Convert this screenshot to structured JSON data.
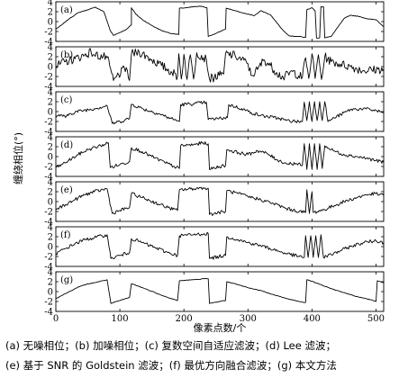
{
  "chart_data": {
    "type": "line",
    "xlabel": "像素点数/个",
    "ylabel": "缠绕相位(°)",
    "xlim": [
      0,
      512
    ],
    "ylim": [
      -4,
      4
    ],
    "xticks": [
      "0",
      "100",
      "200",
      "300",
      "400",
      "500"
    ],
    "yticks": [
      "-4",
      "-2",
      "0",
      "2",
      "4"
    ],
    "panels": [
      {
        "label": "(a)",
        "type": "clean",
        "points": [
          [
            0,
            -1.5
          ],
          [
            8,
            -0.8
          ],
          [
            20,
            0.5
          ],
          [
            35,
            1.8
          ],
          [
            50,
            2.4
          ],
          [
            62,
            2.9
          ],
          [
            75,
            2.0
          ],
          [
            85,
            -1.8
          ],
          [
            90,
            -2.8
          ],
          [
            100,
            -2.2
          ],
          [
            110,
            -1.6
          ],
          [
            118,
            -0.6
          ],
          [
            118,
            2.8
          ],
          [
            125,
            1.5
          ],
          [
            135,
            0.4
          ],
          [
            150,
            -0.8
          ],
          [
            165,
            -1.8
          ],
          [
            180,
            -2.4
          ],
          [
            192,
            -2.6
          ],
          [
            193,
            2.7
          ],
          [
            205,
            2.8
          ],
          [
            215,
            3.0
          ],
          [
            228,
            3.1
          ],
          [
            236,
            2.8
          ],
          [
            238,
            -3.0
          ],
          [
            250,
            -2.4
          ],
          [
            260,
            -1.8
          ],
          [
            265,
            -1.5
          ],
          [
            266,
            2.7
          ],
          [
            275,
            2.4
          ],
          [
            290,
            1.8
          ],
          [
            300,
            1.5
          ],
          [
            310,
            1.2
          ],
          [
            320,
            2.2
          ],
          [
            335,
            1.4
          ],
          [
            345,
            -0.2
          ],
          [
            355,
            -1.8
          ],
          [
            365,
            -2.9
          ],
          [
            380,
            -3.0
          ],
          [
            390,
            -3.2
          ],
          [
            392,
            2.4
          ],
          [
            400,
            2.8
          ],
          [
            405,
            2.2
          ],
          [
            407,
            -3.3
          ],
          [
            412,
            -3.3
          ],
          [
            414,
            3.0
          ],
          [
            418,
            3.0
          ],
          [
            420,
            -3.3
          ],
          [
            430,
            -3.0
          ],
          [
            440,
            -1.2
          ],
          [
            450,
            0.6
          ],
          [
            460,
            1.3
          ],
          [
            475,
            1.0
          ],
          [
            488,
            0.5
          ],
          [
            500,
            0.4
          ],
          [
            512,
            -1.0
          ]
        ]
      },
      {
        "label": "(b)",
        "type": "noisy",
        "points": [
          [
            0,
            0.0
          ],
          [
            15,
            1.0
          ],
          [
            30,
            1.6
          ],
          [
            45,
            2.3
          ],
          [
            55,
            3.0
          ],
          [
            60,
            2.4
          ],
          [
            80,
            1.8
          ],
          [
            90,
            -2.8
          ],
          [
            95,
            -2.0
          ],
          [
            110,
            -0.2
          ],
          [
            115,
            -2.8
          ],
          [
            118,
            2.5
          ],
          [
            130,
            3.0
          ],
          [
            150,
            1.4
          ],
          [
            165,
            0.2
          ],
          [
            180,
            -1.0
          ],
          [
            190,
            -2.0
          ],
          [
            192,
            2.6
          ],
          [
            196,
            -2.5
          ],
          [
            200,
            2.5
          ],
          [
            205,
            -2.6
          ],
          [
            210,
            2.4
          ],
          [
            215,
            -2.5
          ],
          [
            220,
            2.8
          ],
          [
            235,
            1.5
          ],
          [
            240,
            -2.5
          ],
          [
            255,
            -1.8
          ],
          [
            262,
            -1.5
          ],
          [
            265,
            2.6
          ],
          [
            280,
            2.2
          ],
          [
            300,
            0.6
          ],
          [
            305,
            -1.8
          ],
          [
            315,
            -0.6
          ],
          [
            325,
            1.4
          ],
          [
            335,
            0.2
          ],
          [
            345,
            -1.2
          ],
          [
            355,
            -2.2
          ],
          [
            370,
            -1.0
          ],
          [
            385,
            -2.2
          ],
          [
            390,
            1.8
          ],
          [
            395,
            -2.4
          ],
          [
            400,
            2.6
          ],
          [
            405,
            -2.4
          ],
          [
            410,
            2.4
          ],
          [
            415,
            -2.6
          ],
          [
            420,
            2.0
          ],
          [
            430,
            1.0
          ],
          [
            445,
            0.5
          ],
          [
            460,
            0.0
          ],
          [
            480,
            -0.8
          ],
          [
            512,
            -0.5
          ]
        ]
      },
      {
        "label": "(c)",
        "type": "filtered",
        "points": [
          [
            0,
            -1.2
          ],
          [
            8,
            -0.6
          ],
          [
            15,
            -1.2
          ],
          [
            22,
            -0.4
          ],
          [
            40,
            0.2
          ],
          [
            60,
            0.6
          ],
          [
            80,
            1.2
          ],
          [
            88,
            -2.4
          ],
          [
            100,
            -2.0
          ],
          [
            115,
            -1.4
          ],
          [
            118,
            1.5
          ],
          [
            135,
            0.6
          ],
          [
            160,
            -0.4
          ],
          [
            180,
            -1.4
          ],
          [
            193,
            -2.0
          ],
          [
            195,
            1.4
          ],
          [
            215,
            1.6
          ],
          [
            230,
            1.8
          ],
          [
            235,
            1.9
          ],
          [
            238,
            -1.6
          ],
          [
            255,
            -1.4
          ],
          [
            268,
            -1.2
          ],
          [
            270,
            1.4
          ],
          [
            290,
            0.6
          ],
          [
            305,
            -0.2
          ],
          [
            320,
            -0.8
          ],
          [
            340,
            -1.2
          ],
          [
            350,
            -1.4
          ],
          [
            360,
            -1.8
          ],
          [
            375,
            -2.0
          ],
          [
            385,
            -2.0
          ],
          [
            388,
            1.9
          ],
          [
            392,
            -1.8
          ],
          [
            396,
            2.0
          ],
          [
            400,
            -2.0
          ],
          [
            404,
            2.0
          ],
          [
            408,
            -1.8
          ],
          [
            412,
            2.0
          ],
          [
            416,
            -1.8
          ],
          [
            420,
            2.0
          ],
          [
            425,
            -2.0
          ],
          [
            430,
            -1.6
          ],
          [
            445,
            -0.6
          ],
          [
            460,
            0.4
          ],
          [
            480,
            0.6
          ],
          [
            500,
            0.2
          ],
          [
            512,
            -0.2
          ]
        ]
      },
      {
        "label": "(d)",
        "type": "filtered",
        "points": [
          [
            0,
            -2.2
          ],
          [
            10,
            -1.6
          ],
          [
            20,
            -0.8
          ],
          [
            35,
            0.4
          ],
          [
            50,
            1.4
          ],
          [
            70,
            2.2
          ],
          [
            82,
            2.8
          ],
          [
            85,
            -2.2
          ],
          [
            100,
            -1.6
          ],
          [
            115,
            -1.0
          ],
          [
            118,
            1.8
          ],
          [
            135,
            1.0
          ],
          [
            150,
            0.0
          ],
          [
            170,
            -1.2
          ],
          [
            185,
            -2.0
          ],
          [
            193,
            -2.4
          ],
          [
            195,
            2.2
          ],
          [
            215,
            2.4
          ],
          [
            230,
            2.8
          ],
          [
            238,
            2.6
          ],
          [
            240,
            -2.6
          ],
          [
            255,
            -2.0
          ],
          [
            265,
            -1.8
          ],
          [
            267,
            1.4
          ],
          [
            285,
            0.8
          ],
          [
            300,
            0.4
          ],
          [
            315,
            1.2
          ],
          [
            330,
            0.6
          ],
          [
            345,
            -0.6
          ],
          [
            360,
            -1.4
          ],
          [
            375,
            -1.4
          ],
          [
            385,
            -1.8
          ],
          [
            388,
            2.6
          ],
          [
            392,
            -2.6
          ],
          [
            396,
            2.6
          ],
          [
            400,
            -2.6
          ],
          [
            404,
            2.6
          ],
          [
            408,
            -2.6
          ],
          [
            412,
            2.6
          ],
          [
            416,
            -2.4
          ],
          [
            420,
            2.2
          ],
          [
            430,
            1.4
          ],
          [
            445,
            0.6
          ],
          [
            460,
            0.2
          ],
          [
            480,
            -0.2
          ],
          [
            500,
            -0.8
          ],
          [
            512,
            -1.2
          ]
        ]
      },
      {
        "label": "(e)",
        "type": "filtered",
        "points": [
          [
            0,
            -1.6
          ],
          [
            15,
            -0.6
          ],
          [
            30,
            0.4
          ],
          [
            45,
            1.4
          ],
          [
            60,
            2.0
          ],
          [
            80,
            2.6
          ],
          [
            88,
            -2.4
          ],
          [
            100,
            -1.8
          ],
          [
            115,
            -1.2
          ],
          [
            118,
            1.6
          ],
          [
            135,
            0.8
          ],
          [
            155,
            -0.2
          ],
          [
            175,
            -1.2
          ],
          [
            190,
            -1.8
          ],
          [
            193,
            2.4
          ],
          [
            215,
            2.6
          ],
          [
            230,
            2.8
          ],
          [
            238,
            2.7
          ],
          [
            240,
            -2.6
          ],
          [
            255,
            -2.2
          ],
          [
            265,
            -2.0
          ],
          [
            267,
            2.2
          ],
          [
            285,
            1.6
          ],
          [
            300,
            1.0
          ],
          [
            320,
            0.4
          ],
          [
            340,
            -0.4
          ],
          [
            360,
            -1.4
          ],
          [
            380,
            -2.0
          ],
          [
            390,
            -2.2
          ],
          [
            392,
            2.4
          ],
          [
            396,
            -2.4
          ],
          [
            400,
            2.0
          ],
          [
            402,
            -2.2
          ],
          [
            420,
            -1.6
          ],
          [
            435,
            -0.8
          ],
          [
            450,
            0.0
          ],
          [
            470,
            0.8
          ],
          [
            485,
            1.4
          ],
          [
            500,
            1.6
          ],
          [
            512,
            1.2
          ]
        ]
      },
      {
        "label": "(f)",
        "type": "filtered",
        "points": [
          [
            0,
            -1.4
          ],
          [
            15,
            -0.4
          ],
          [
            30,
            0.6
          ],
          [
            45,
            1.4
          ],
          [
            60,
            1.8
          ],
          [
            80,
            2.4
          ],
          [
            86,
            -2.4
          ],
          [
            100,
            -1.8
          ],
          [
            115,
            -1.2
          ],
          [
            118,
            1.6
          ],
          [
            135,
            0.8
          ],
          [
            155,
            -0.2
          ],
          [
            175,
            -1.2
          ],
          [
            190,
            -1.8
          ],
          [
            193,
            2.2
          ],
          [
            215,
            2.4
          ],
          [
            232,
            2.6
          ],
          [
            238,
            2.6
          ],
          [
            240,
            -2.4
          ],
          [
            255,
            -2.0
          ],
          [
            265,
            -1.8
          ],
          [
            267,
            2.0
          ],
          [
            285,
            1.4
          ],
          [
            300,
            0.8
          ],
          [
            320,
            0.2
          ],
          [
            340,
            -0.6
          ],
          [
            360,
            -1.4
          ],
          [
            380,
            -2.0
          ],
          [
            388,
            -2.2
          ],
          [
            390,
            2.2
          ],
          [
            394,
            -2.2
          ],
          [
            398,
            2.2
          ],
          [
            402,
            -2.2
          ],
          [
            406,
            2.2
          ],
          [
            410,
            -2.2
          ],
          [
            414,
            2.4
          ],
          [
            418,
            -2.2
          ],
          [
            430,
            -1.6
          ],
          [
            445,
            -0.8
          ],
          [
            460,
            0.0
          ],
          [
            480,
            0.8
          ],
          [
            500,
            1.2
          ],
          [
            512,
            0.8
          ]
        ]
      },
      {
        "label": "(g)",
        "type": "clean",
        "points": [
          [
            0,
            -1.4
          ],
          [
            15,
            -0.4
          ],
          [
            30,
            0.6
          ],
          [
            45,
            1.4
          ],
          [
            60,
            1.8
          ],
          [
            80,
            2.4
          ],
          [
            86,
            -2.4
          ],
          [
            100,
            -1.8
          ],
          [
            115,
            -1.2
          ],
          [
            118,
            1.6
          ],
          [
            135,
            0.8
          ],
          [
            155,
            -0.2
          ],
          [
            175,
            -1.2
          ],
          [
            190,
            -1.8
          ],
          [
            193,
            2.2
          ],
          [
            215,
            2.4
          ],
          [
            232,
            2.6
          ],
          [
            238,
            2.6
          ],
          [
            240,
            -2.4
          ],
          [
            255,
            -2.0
          ],
          [
            265,
            -1.8
          ],
          [
            267,
            2.0
          ],
          [
            285,
            1.4
          ],
          [
            300,
            0.8
          ],
          [
            320,
            0.2
          ],
          [
            340,
            -0.6
          ],
          [
            360,
            -1.4
          ],
          [
            380,
            -2.0
          ],
          [
            390,
            -2.2
          ],
          [
            392,
            2.4
          ],
          [
            410,
            1.6
          ],
          [
            430,
            0.6
          ],
          [
            450,
            -0.2
          ],
          [
            470,
            -1.0
          ],
          [
            490,
            -1.6
          ],
          [
            500,
            -2.0
          ],
          [
            502,
            2.2
          ],
          [
            512,
            1.8
          ]
        ]
      }
    ]
  },
  "caption": {
    "line1": "(a) 无噪相位；(b) 加噪相位；(c) 复数空间自适应滤波；(d) Lee 滤波；",
    "line2": "(e) 基于 SNR 的 Goldstein 滤波；(f) 最优方向融合滤波；(g) 本文方法"
  }
}
